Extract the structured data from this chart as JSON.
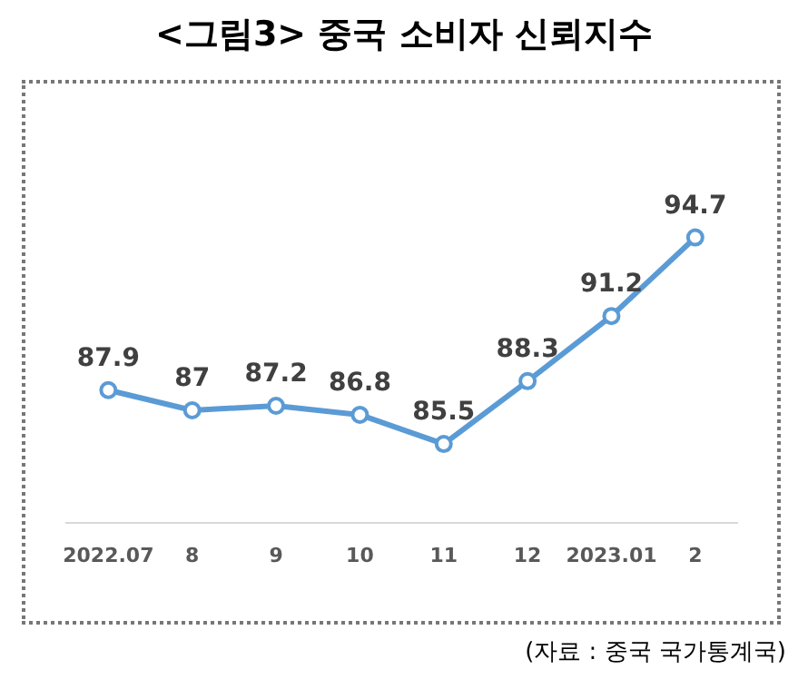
{
  "chart_data": {
    "type": "line",
    "title": "<그림3> 중국 소비자 신뢰지수",
    "categories": [
      "2022.07",
      "8",
      "9",
      "10",
      "11",
      "12",
      "2023.01",
      "2"
    ],
    "series": [
      {
        "color": "#5b9bd5",
        "values": [
          87.9,
          87,
          87.2,
          86.8,
          85.5,
          88.3,
          91.2,
          94.7
        ]
      }
    ],
    "data_labels": true,
    "marker": "circle",
    "line_style": "solid",
    "grid": false,
    "legend": false,
    "tick_labels": "x",
    "annotations": [
      "(자료 : 중국 국가통계국)"
    ]
  }
}
